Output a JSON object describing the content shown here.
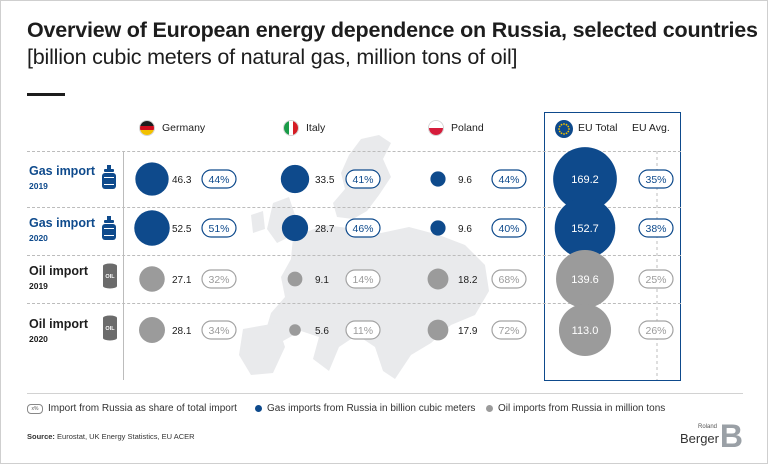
{
  "title": {
    "line1": "Overview of European energy dependence on Russia, selected countries",
    "line2": "[billion cubic meters of natural gas, million tons of oil]"
  },
  "colors": {
    "gas": "#0e4a8c",
    "oil": "#9b9b9b",
    "pill_oil": "#a3a3a3",
    "map": "#e9eaec"
  },
  "icons": {
    "gas": "gas-cylinder-icon",
    "oil": "oil-barrel-icon"
  },
  "chart_data": {
    "type": "table",
    "columns": [
      {
        "name": "Germany",
        "flag": "germany-flag-icon"
      },
      {
        "name": "Italy",
        "flag": "italy-flag-icon"
      },
      {
        "name": "Poland",
        "flag": "poland-flag-icon"
      },
      {
        "name": "EU Total",
        "flag": "eu-flag-icon"
      },
      {
        "name": "EU Avg."
      }
    ],
    "rows": [
      {
        "label": "Gas import",
        "year": "2019",
        "kind": "gas",
        "values": [
          46.3,
          33.5,
          9.6
        ],
        "shares": [
          "44%",
          "41%",
          "44%"
        ],
        "eu_total": 169.2,
        "eu_avg": "35%"
      },
      {
        "label": "Gas import",
        "year": "2020",
        "kind": "gas",
        "values": [
          52.5,
          28.7,
          9.6
        ],
        "shares": [
          "51%",
          "46%",
          "40%"
        ],
        "eu_total": 152.7,
        "eu_avg": "38%"
      },
      {
        "label": "Oil import",
        "year": "2019",
        "kind": "oil",
        "values": [
          27.1,
          9.1,
          18.2
        ],
        "shares": [
          "32%",
          "14%",
          "68%"
        ],
        "eu_total": 139.6,
        "eu_avg": "25%"
      },
      {
        "label": "Oil import",
        "year": "2020",
        "kind": "oil",
        "values": [
          28.1,
          5.6,
          17.9
        ],
        "shares": [
          "34%",
          "11%",
          "72%"
        ],
        "eu_total": 113.0,
        "eu_avg": "26%"
      }
    ],
    "legend": [
      {
        "marker": "pill",
        "pill_text": "x%",
        "text": "Import from Russia as share of total import"
      },
      {
        "marker": "gas",
        "text": "Gas imports from Russia in billion cubic meters"
      },
      {
        "marker": "oil",
        "text": "Oil imports from Russia in million tons"
      }
    ]
  },
  "source": {
    "label": "Source:",
    "text": "Eurostat, UK Energy Statistics, EU ACER"
  },
  "logo": {
    "top": "Roland",
    "bottom": "Berger",
    "mark": "B"
  }
}
